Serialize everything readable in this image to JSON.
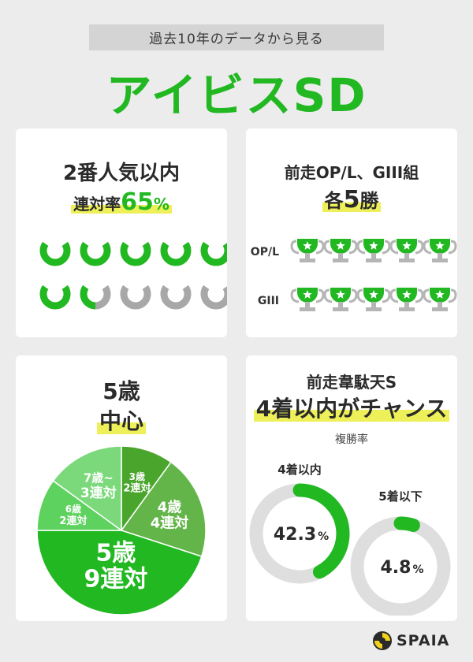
{
  "header": {
    "subtitle": "過去10年のデータから見る",
    "title": "アイビスSD"
  },
  "card_popularity": {
    "line1": "2番人気以内",
    "line2_prefix": "連対率",
    "line2_value": "65",
    "line2_unit": "%",
    "rate_percent": 65,
    "total_icons": 10
  },
  "card_prev_race": {
    "line1": "前走OP/L、GIII組",
    "line2_prefix": "各",
    "line2_value": "5",
    "line2_suffix": "勝",
    "rows": [
      {
        "label": "OP/L",
        "trophies": 5
      },
      {
        "label": "GIII",
        "trophies": 5
      }
    ]
  },
  "card_age": {
    "line1": "5歳",
    "line2": "中心",
    "chart_data": {
      "type": "pie",
      "slices": [
        {
          "age": "3歳",
          "count": "2連対",
          "value": 2,
          "color": "#4aa52c"
        },
        {
          "age": "4歳",
          "count": "4連対",
          "value": 4,
          "color": "#63b54a"
        },
        {
          "age": "5歳",
          "count": "9連対",
          "value": 9,
          "color": "#21b821"
        },
        {
          "age": "6歳",
          "count": "2連対",
          "value": 2,
          "color": "#5ed25e"
        },
        {
          "age": "7歳~",
          "count": "3連対",
          "value": 3,
          "color": "#7bd97b"
        }
      ]
    }
  },
  "card_idaten": {
    "line1": "前走韋駄天S",
    "line2": "4着以内がチャンス",
    "metric_label": "複勝率",
    "chart_data": {
      "type": "donut",
      "items": [
        {
          "label": "4着以内",
          "value": 42.3,
          "display": "42.3",
          "unit": "%"
        },
        {
          "label": "5着以下",
          "value": 4.8,
          "display": "4.8",
          "unit": "%"
        }
      ]
    }
  },
  "colors": {
    "green": "#21b821",
    "gray": "#a8a8a8",
    "ring_track": "#dedede",
    "highlight": "#eef05a"
  },
  "logo": {
    "text": "SPAIA"
  }
}
